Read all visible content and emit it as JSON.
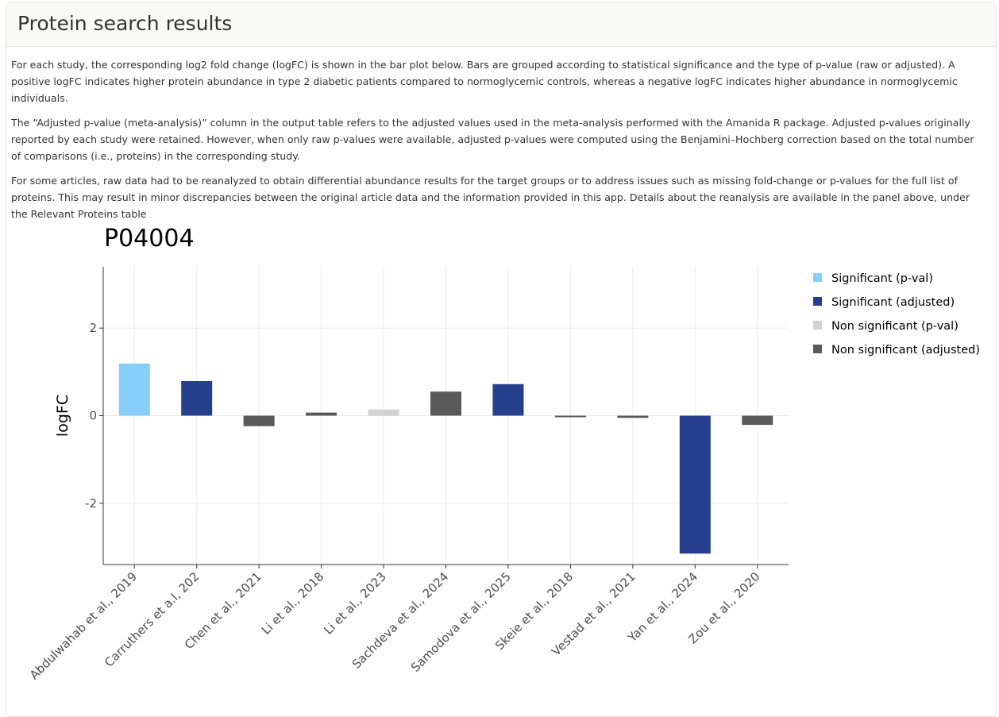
{
  "panel": {
    "title": "Protein search results"
  },
  "description": [
    "For each study, the corresponding log2 fold change (logFC) is shown in the bar plot below. Bars are grouped according to statistical significance and the type of p-value (raw or adjusted). A positive logFC indicates higher protein abundance in type 2 diabetic patients compared to normoglycemic controls, whereas a negative logFC indicates higher abundance in normoglycemic individuals.",
    "The “Adjusted p-value (meta-analysis)” column in the output table refers to the adjusted values used in the meta-analysis performed with the Amanida R package. Adjusted p-values originally reported by each study were retained. However, when only raw p-values were available, adjusted p-values were computed using the Benjamini–Hochberg correction based on the total number of comparisons (i.e., proteins) in the corresponding study.",
    "For some articles, raw data had to be reanalyzed to obtain differential abundance results for the target groups or to address issues such as missing fold-change or p-values for the full list of proteins. This may result in minor discrepancies between the original article data and the information provided in this app. Details about the reanalysis are available in the panel above, under the Relevant Proteins table"
  ],
  "chart_data": {
    "type": "bar",
    "title": "P04004",
    "ylabel": "logFC",
    "xlabel": "",
    "ylim": [
      -3.4,
      3.4
    ],
    "yticks": [
      -2,
      0,
      2
    ],
    "grid": true,
    "legend_position": "right",
    "legend": [
      {
        "name": "Significant (p-val)",
        "color": "#87cefa"
      },
      {
        "name": "Significant (adjusted)",
        "color": "#253f8c"
      },
      {
        "name": "Non significant (p-val)",
        "color": "#d3d3d3"
      },
      {
        "name": "Non significant (adjusted)",
        "color": "#595959"
      }
    ],
    "categories": [
      "Abdulwahab et al., 2019",
      "Carruthers et a.l, 202",
      "Chen et al., 2021",
      "Li  et al., 2018",
      "Li et al., 2023",
      "Sachdeva et al., 2024",
      "Samodova et al., 2025",
      "Skeie et al., 2018",
      "Vestad et al., 2021",
      "Yan et al., 2024",
      "Zou et al., 2020"
    ],
    "values": [
      1.19,
      0.79,
      -0.24,
      0.07,
      0.14,
      0.55,
      0.72,
      -0.02,
      -0.05,
      -3.15,
      -0.21
    ],
    "groups": [
      "Significant (p-val)",
      "Significant (adjusted)",
      "Non significant (adjusted)",
      "Non significant (adjusted)",
      "Non significant (p-val)",
      "Non significant (adjusted)",
      "Significant (adjusted)",
      "Non significant (adjusted)",
      "Non significant (adjusted)",
      "Significant (adjusted)",
      "Non significant (adjusted)"
    ]
  }
}
